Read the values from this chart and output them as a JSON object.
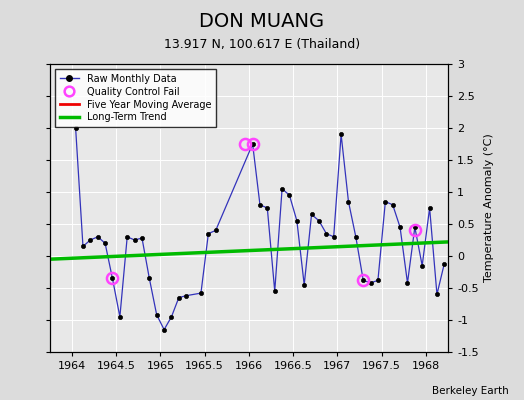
{
  "title": "DON MUANG",
  "subtitle": "13.917 N, 100.617 E (Thailand)",
  "credit": "Berkeley Earth",
  "ylabel": "Temperature Anomaly (°C)",
  "ylim": [
    -1.5,
    3.0
  ],
  "xlim": [
    1963.75,
    1968.25
  ],
  "background_color": "#dcdcdc",
  "plot_bg_color": "#e8e8e8",
  "raw_x": [
    1964.042,
    1964.125,
    1964.208,
    1964.292,
    1964.375,
    1964.458,
    1964.542,
    1964.625,
    1964.708,
    1964.792,
    1964.875,
    1964.958,
    1965.042,
    1965.125,
    1965.208,
    1965.292,
    1965.458,
    1965.542,
    1965.625,
    1966.042,
    1966.125,
    1966.208,
    1966.292,
    1966.375,
    1966.458,
    1966.542,
    1966.625,
    1966.708,
    1966.792,
    1966.875,
    1966.958,
    1967.042,
    1967.125,
    1967.208,
    1967.292,
    1967.375,
    1967.458,
    1967.542,
    1967.625,
    1967.708,
    1967.792,
    1967.875,
    1967.958,
    1968.042,
    1968.125,
    1968.208
  ],
  "raw_y": [
    2.0,
    0.15,
    0.25,
    0.3,
    0.2,
    -0.35,
    -0.95,
    0.3,
    0.25,
    0.28,
    -0.35,
    -0.92,
    -1.15,
    -0.95,
    -0.65,
    -0.62,
    -0.58,
    0.35,
    0.4,
    1.75,
    0.8,
    0.75,
    -0.55,
    1.05,
    0.95,
    0.55,
    -0.45,
    0.65,
    0.55,
    0.35,
    0.3,
    1.9,
    0.85,
    0.3,
    -0.38,
    -0.42,
    -0.38,
    0.85,
    0.8,
    0.45,
    -0.42,
    0.45,
    -0.15,
    0.75,
    -0.6,
    -0.12
  ],
  "qc_fail_x": [
    1964.458,
    1965.958,
    1966.042,
    1967.292,
    1967.875
  ],
  "qc_fail_y": [
    -0.35,
    1.75,
    1.75,
    -0.38,
    0.4
  ],
  "trend_x": [
    1963.75,
    1968.25
  ],
  "trend_y": [
    -0.05,
    0.22
  ],
  "xticks": [
    1964,
    1964.5,
    1965,
    1965.5,
    1966,
    1966.5,
    1967,
    1967.5,
    1968
  ],
  "xtick_labels": [
    "1964",
    "1964.5",
    "1965",
    "1965.5",
    "1966",
    "1966.5",
    "1967",
    "1967.5",
    "1968"
  ],
  "yticks": [
    -1.5,
    -1.0,
    -0.5,
    0.0,
    0.5,
    1.0,
    1.5,
    2.0,
    2.5,
    3.0
  ],
  "ytick_labels": [
    "-1.5",
    "-1",
    "-0.5",
    "0",
    "0.5",
    "1",
    "1.5",
    "2",
    "2.5",
    "3"
  ],
  "raw_color": "#3333bb",
  "raw_marker_color": "#000000",
  "qc_color": "#ff44ff",
  "trend_color": "#00bb00",
  "mavg_color": "#ee0000",
  "title_fontsize": 14,
  "subtitle_fontsize": 9,
  "tick_fontsize": 8,
  "ylabel_fontsize": 8
}
